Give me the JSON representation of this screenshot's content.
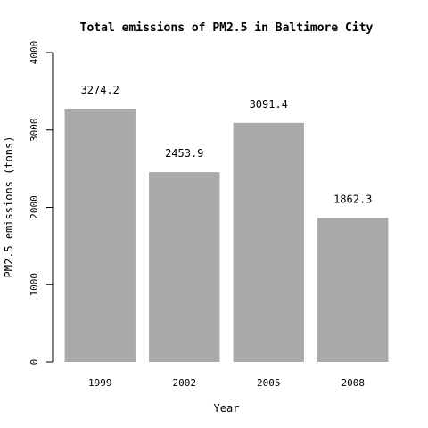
{
  "chart_data": {
    "type": "bar",
    "title": "Total emissions of PM2.5 in Baltimore City",
    "xlabel": "Year",
    "ylabel": "PM2.5 emissions (tons)",
    "categories": [
      "1999",
      "2002",
      "2005",
      "2008"
    ],
    "values": [
      3274.2,
      2453.9,
      3091.4,
      1862.3
    ],
    "value_labels": [
      "3274.2",
      "2453.9",
      "3091.4",
      "1862.3"
    ],
    "ylim": [
      0,
      4000
    ],
    "yticks": [
      0,
      1000,
      2000,
      3000,
      4000
    ],
    "ytick_labels": [
      "0",
      "1000",
      "2000",
      "3000",
      "4000"
    ],
    "bar_color": "#a9a9a9",
    "grid": false
  }
}
